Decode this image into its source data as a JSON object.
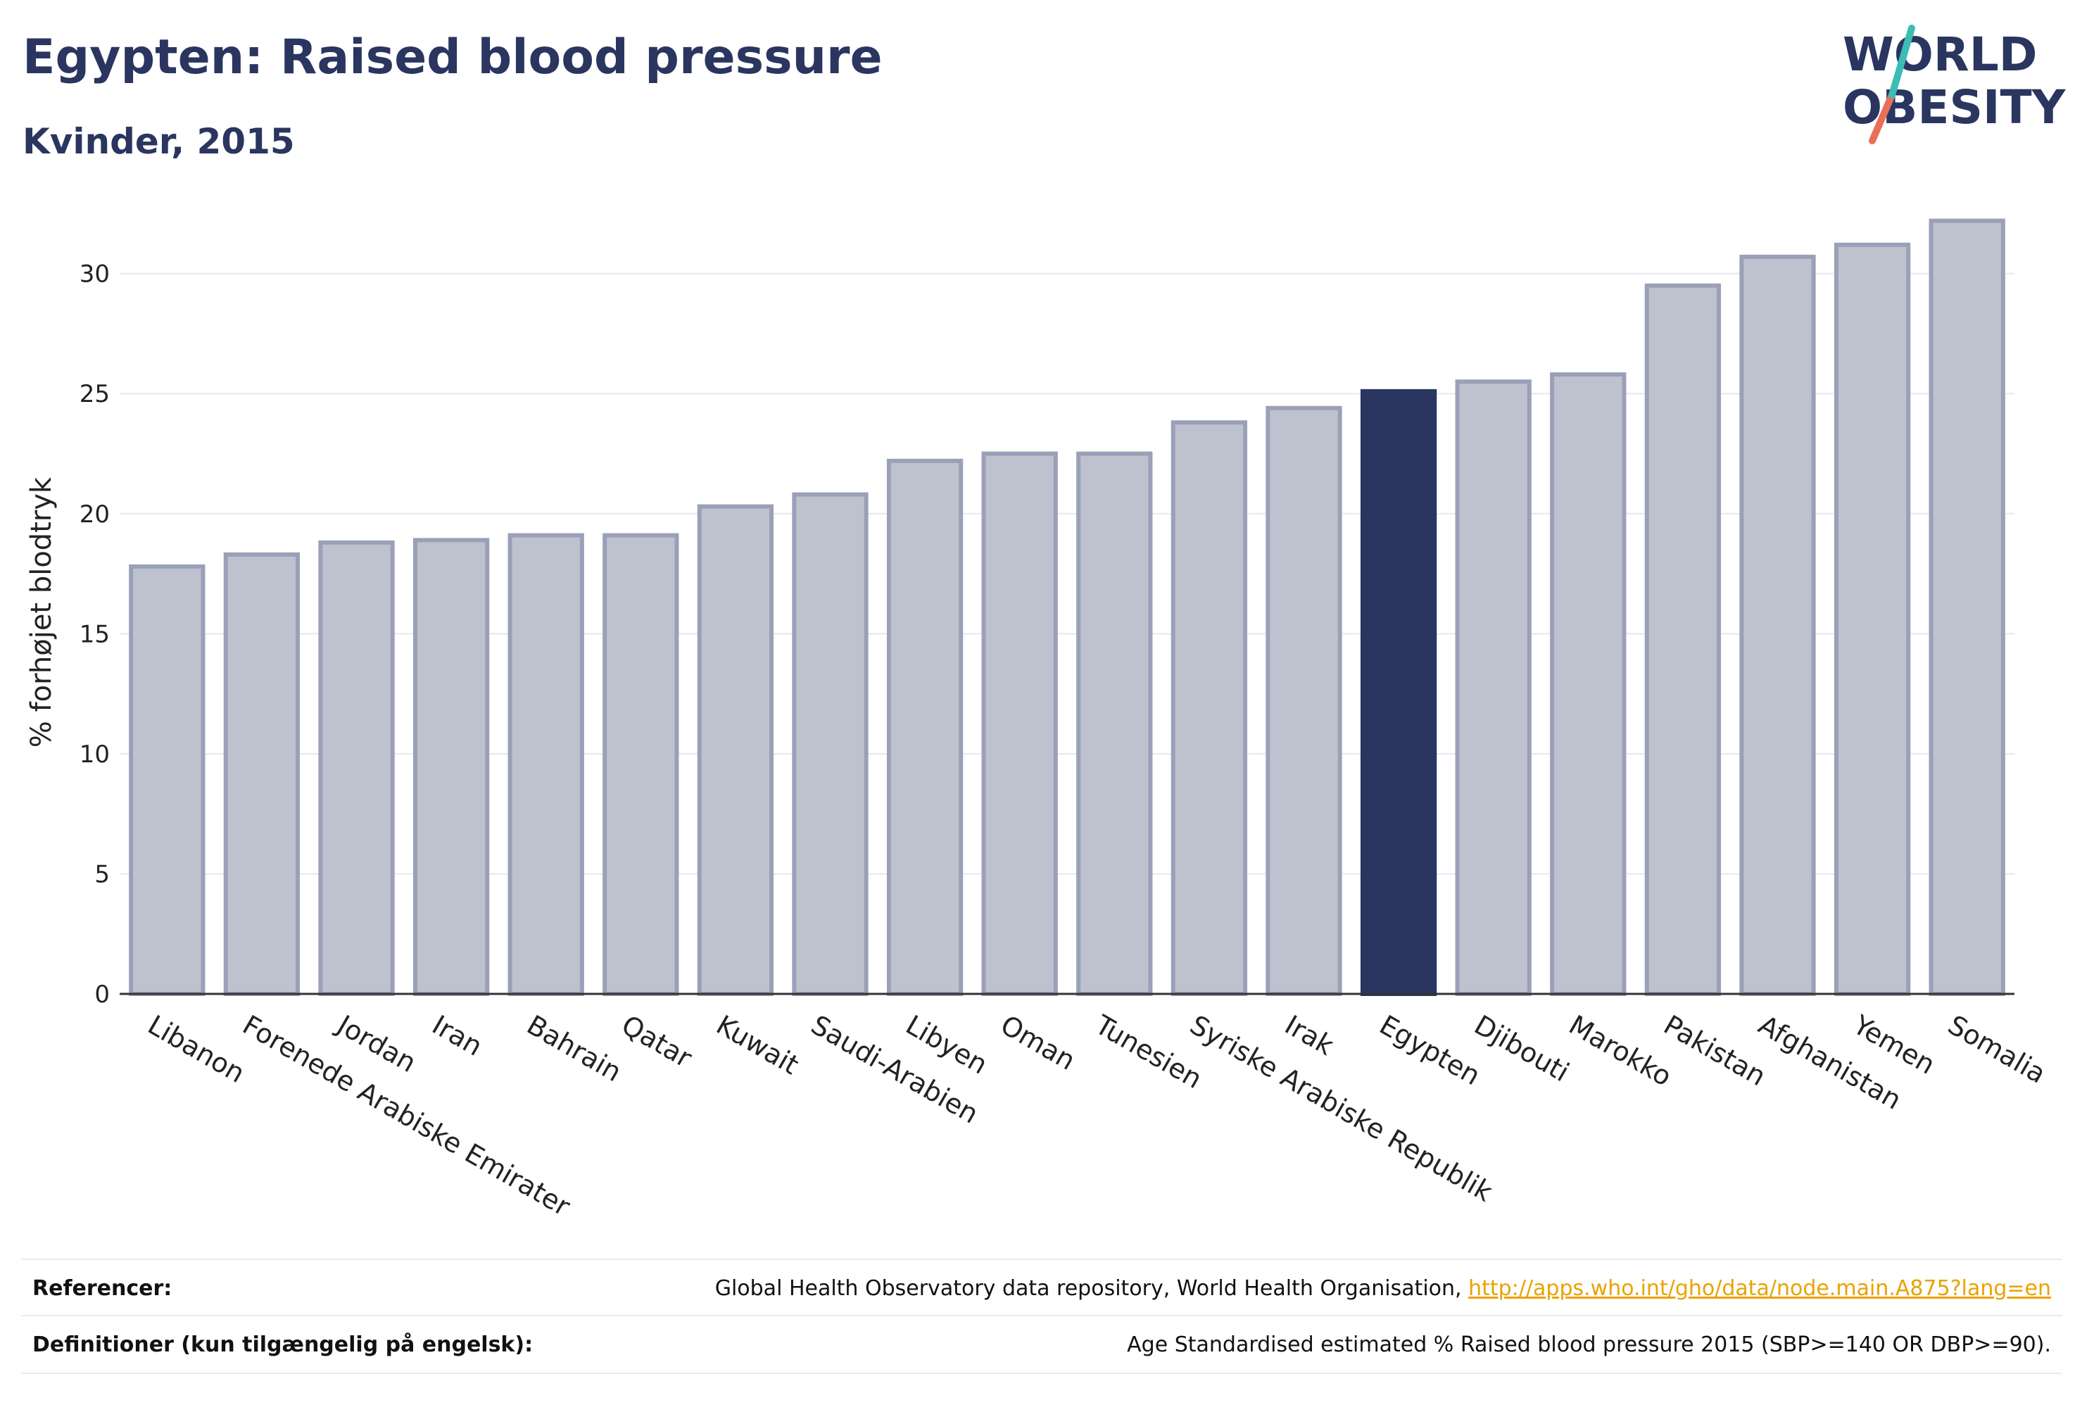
{
  "header": {
    "title": "Egypten: Raised blood pressure",
    "subtitle": "Kvinder, 2015"
  },
  "logo": {
    "line1": "WORLD",
    "line2": "OBESITY",
    "colors": {
      "text": "#2a3560",
      "slash_top": "#3cbcb4",
      "slash_bottom": "#e8705a"
    }
  },
  "chart_data": {
    "type": "bar",
    "ylabel": "% forhøjet blodtryk",
    "xlabel": "",
    "ylim": [
      0,
      32.6
    ],
    "yticks": [
      0,
      5,
      10,
      15,
      20,
      25,
      30
    ],
    "grid": true,
    "highlight": "Egypten",
    "colors": {
      "bar_fill": "#bec2cf",
      "bar_stroke": "#9aa0b8",
      "highlight_fill": "#2a3560",
      "grid": "#e6e8ee",
      "axis": "#333333"
    },
    "categories": [
      "Libanon",
      "Forenede Arabiske Emirater",
      "Jordan",
      "Iran",
      "Bahrain",
      "Qatar",
      "Kuwait",
      "Saudi-Arabien",
      "Libyen",
      "Oman",
      "Tunesien",
      "Syriske Arabiske Republik",
      "Irak",
      "Egypten",
      "Djibouti",
      "Marokko",
      "Pakistan",
      "Afghanistan",
      "Yemen",
      "Somalia"
    ],
    "values": [
      17.8,
      18.3,
      18.8,
      18.9,
      19.1,
      19.1,
      20.3,
      20.8,
      22.2,
      22.5,
      22.5,
      23.8,
      24.4,
      25.1,
      25.5,
      25.8,
      29.5,
      30.7,
      31.2,
      32.2
    ]
  },
  "footer": {
    "references_label": "Referencer:",
    "references_text": "Global Health Observatory data repository, World Health Organisation,",
    "references_link": "http://apps.who.int/gho/data/node.main.A875?lang=en",
    "definitions_label": "Definitioner (kun tilgængelig på engelsk):",
    "definitions_text": "Age Standardised estimated % Raised blood pressure 2015 (SBP>=140 OR DBP>=90)."
  }
}
